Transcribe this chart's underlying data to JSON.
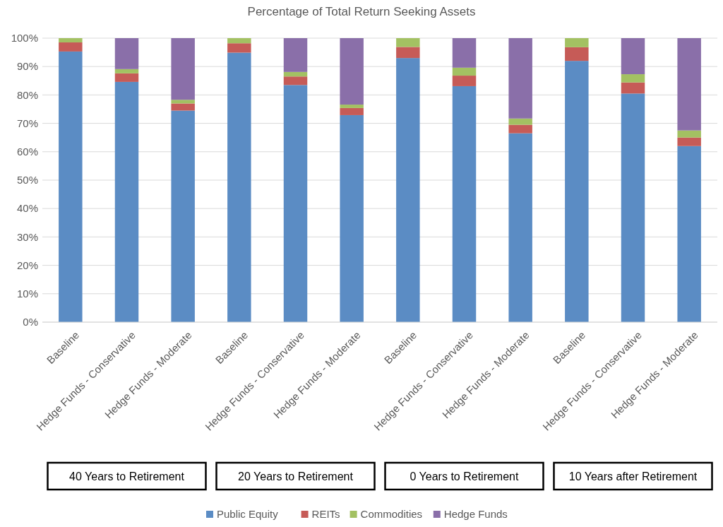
{
  "chart_data": {
    "type": "bar",
    "title": "Percentage of Total Return Seeking Assets",
    "stacked": true,
    "categories": [
      "Baseline",
      "Hedge Funds - Conservative",
      "Hedge Funds - Moderate",
      "Baseline",
      "Hedge Funds - Conservative",
      "Hedge Funds - Moderate",
      "Baseline",
      "Hedge Funds - Conservative",
      "Hedge Funds - Moderate",
      "Baseline",
      "Hedge Funds - Conservative",
      "Hedge Funds - Moderate"
    ],
    "series": [
      {
        "name": "Public Equity",
        "color": "#5b8cc4",
        "values": [
          95.3,
          84.6,
          74.5,
          94.9,
          83.5,
          72.9,
          93.0,
          83.1,
          66.5,
          92.0,
          80.5,
          62.0
        ]
      },
      {
        "name": "REITs",
        "color": "#c65b57",
        "values": [
          3.2,
          3.0,
          2.5,
          3.3,
          3.0,
          2.5,
          3.9,
          3.7,
          3.0,
          4.8,
          3.9,
          3.0
        ]
      },
      {
        "name": "Commodities",
        "color": "#a3c162",
        "values": [
          1.5,
          1.5,
          1.3,
          1.8,
          1.6,
          1.2,
          3.1,
          2.8,
          2.2,
          3.2,
          2.9,
          2.5
        ]
      },
      {
        "name": "Hedge Funds",
        "color": "#8a6fa9",
        "values": [
          0,
          10.9,
          21.7,
          0,
          11.9,
          23.4,
          0,
          10.4,
          28.3,
          0,
          12.7,
          32.5
        ]
      }
    ],
    "ylim": [
      0,
      100
    ],
    "yticks": [
      {
        "value": 0,
        "label": "0%"
      },
      {
        "value": 10,
        "label": "10%"
      },
      {
        "value": 20,
        "label": "20%"
      },
      {
        "value": 30,
        "label": "30%"
      },
      {
        "value": 40,
        "label": "40%"
      },
      {
        "value": 50,
        "label": "50%"
      },
      {
        "value": 60,
        "label": "60%"
      },
      {
        "value": 70,
        "label": "70%"
      },
      {
        "value": 80,
        "label": "80%"
      },
      {
        "value": 90,
        "label": "90%"
      },
      {
        "value": 100,
        "label": "100%"
      }
    ],
    "grid": "y",
    "legend": "bottom",
    "annotations": [
      "40 Years to Retirement",
      "20 Years to Retirement",
      "0 Years to Retirement",
      "10 Years after Retirement"
    ]
  }
}
